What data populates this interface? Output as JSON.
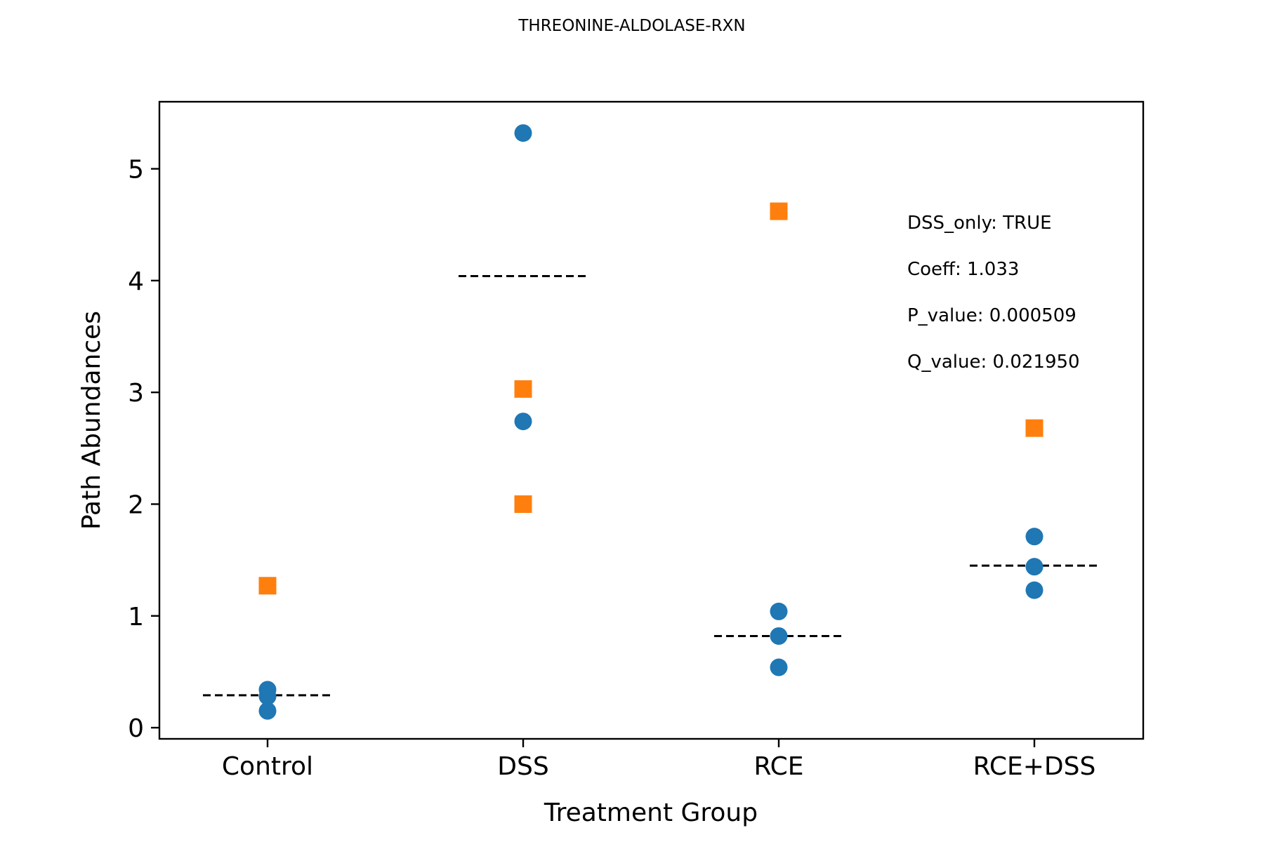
{
  "chart_data": {
    "type": "scatter",
    "title": "THREONINE-ALDOLASE-RXN",
    "xlabel": "Treatment Group",
    "ylabel": "Path Abundances",
    "categories": [
      "Control",
      "DSS",
      "RCE",
      "RCE+DSS"
    ],
    "ylim": [
      -0.1,
      5.6
    ],
    "yticks": [
      0,
      1,
      2,
      3,
      4,
      5
    ],
    "grid": false,
    "series": [
      {
        "marker": "circle",
        "color": "#1f77b4",
        "points": [
          {
            "x": "Control",
            "y": 0.34
          },
          {
            "x": "Control",
            "y": 0.28
          },
          {
            "x": "Control",
            "y": 0.15
          },
          {
            "x": "DSS",
            "y": 5.32
          },
          {
            "x": "DSS",
            "y": 2.74
          },
          {
            "x": "RCE",
            "y": 1.04
          },
          {
            "x": "RCE",
            "y": 0.82
          },
          {
            "x": "RCE",
            "y": 0.54
          },
          {
            "x": "RCE+DSS",
            "y": 1.71
          },
          {
            "x": "RCE+DSS",
            "y": 1.44
          },
          {
            "x": "RCE+DSS",
            "y": 1.23
          }
        ]
      },
      {
        "marker": "square",
        "color": "#ff7f0e",
        "points": [
          {
            "x": "Control",
            "y": 1.27
          },
          {
            "x": "DSS",
            "y": 3.03
          },
          {
            "x": "DSS",
            "y": 2.0
          },
          {
            "x": "RCE",
            "y": 4.62
          },
          {
            "x": "RCE+DSS",
            "y": 2.68
          }
        ]
      }
    ],
    "group_lines": [
      {
        "x": "Control",
        "y": 0.29
      },
      {
        "x": "DSS",
        "y": 4.04
      },
      {
        "x": "RCE",
        "y": 0.82
      },
      {
        "x": "RCE+DSS",
        "y": 1.45
      }
    ],
    "annotations": [
      "DSS_only: TRUE",
      "Coeff: 1.033",
      "P_value: 0.000509",
      "Q_value: 0.021950"
    ]
  }
}
